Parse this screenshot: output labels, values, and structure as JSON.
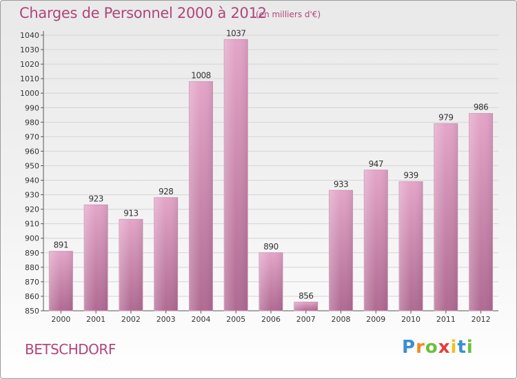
{
  "header": {
    "title": "Charges de Personnel 2000 à 2012",
    "subtitle": "(en milliers d'€)"
  },
  "footer": {
    "commune": "BETSCHDORF",
    "logo_letters": [
      "P",
      "r",
      "o",
      "x",
      "i",
      "t",
      "i"
    ],
    "logo_colors": [
      "#3b8fd1",
      "#f08a1c",
      "#6cbf3a",
      "#e63c3c",
      "#f0c21c",
      "#3b8fd1",
      "#6cbf3a"
    ]
  },
  "chart_data": {
    "type": "bar",
    "title": "Charges de Personnel 2000 à 2012",
    "subtitle": "(en milliers d'€)",
    "categories": [
      "2000",
      "2001",
      "2002",
      "2003",
      "2004",
      "2005",
      "2006",
      "2007",
      "2008",
      "2009",
      "2010",
      "2011",
      "2012"
    ],
    "values": [
      891,
      923,
      913,
      928,
      1008,
      1037,
      890,
      856,
      933,
      947,
      939,
      979,
      986
    ],
    "ylim": [
      850,
      1040
    ],
    "yticks": [
      850,
      860,
      870,
      880,
      890,
      900,
      910,
      920,
      930,
      940,
      950,
      960,
      970,
      980,
      990,
      1000,
      1010,
      1020,
      1030,
      1040
    ],
    "grid": true,
    "data_labels": true,
    "colors": {
      "bar": "#c97aa3",
      "text": "#b0457a",
      "axis": "#555555",
      "grid": "#d4d4d4"
    }
  }
}
